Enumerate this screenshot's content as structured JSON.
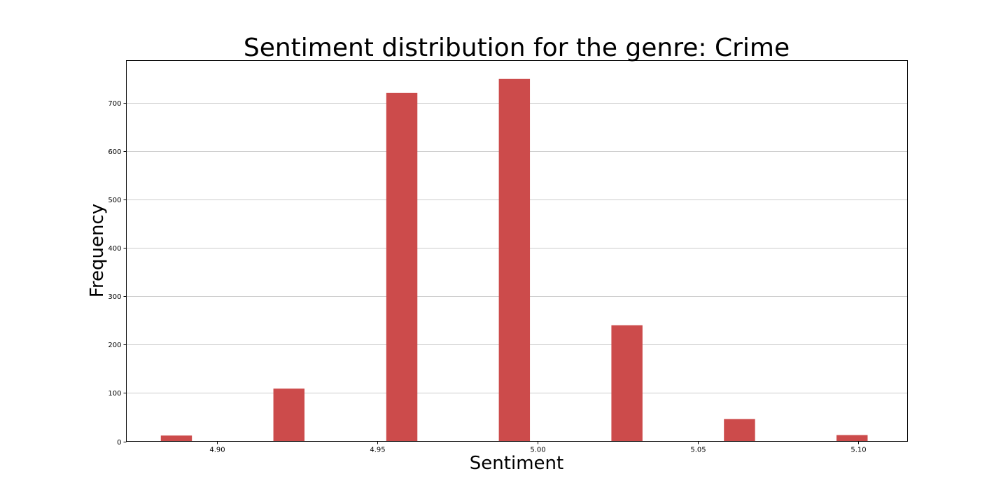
{
  "chart_data": {
    "type": "bar",
    "title": "Sentiment distribution for the genre: Crime",
    "xlabel": "Sentiment",
    "ylabel": "Frequency",
    "xlim": [
      4.8717,
      5.1153
    ],
    "ylim": [
      0,
      787
    ],
    "bar_width": 0.0097,
    "x_ticks": [
      4.9,
      4.95,
      5.0,
      5.05,
      5.1
    ],
    "x_tick_labels": [
      "4.90",
      "4.95",
      "5.00",
      "5.05",
      "5.10"
    ],
    "y_ticks": [
      0,
      100,
      200,
      300,
      400,
      500,
      600,
      700
    ],
    "y_tick_labels": [
      "0",
      "100",
      "200",
      "300",
      "400",
      "500",
      "600",
      "700"
    ],
    "grid": "y",
    "color": "#cc4b4b",
    "bars": [
      {
        "x": 4.8873,
        "value": 12
      },
      {
        "x": 4.9224,
        "value": 109
      },
      {
        "x": 4.9576,
        "value": 720
      },
      {
        "x": 4.9927,
        "value": 749
      },
      {
        "x": 5.0278,
        "value": 240
      },
      {
        "x": 5.0629,
        "value": 46
      },
      {
        "x": 5.098,
        "value": 13
      }
    ]
  }
}
